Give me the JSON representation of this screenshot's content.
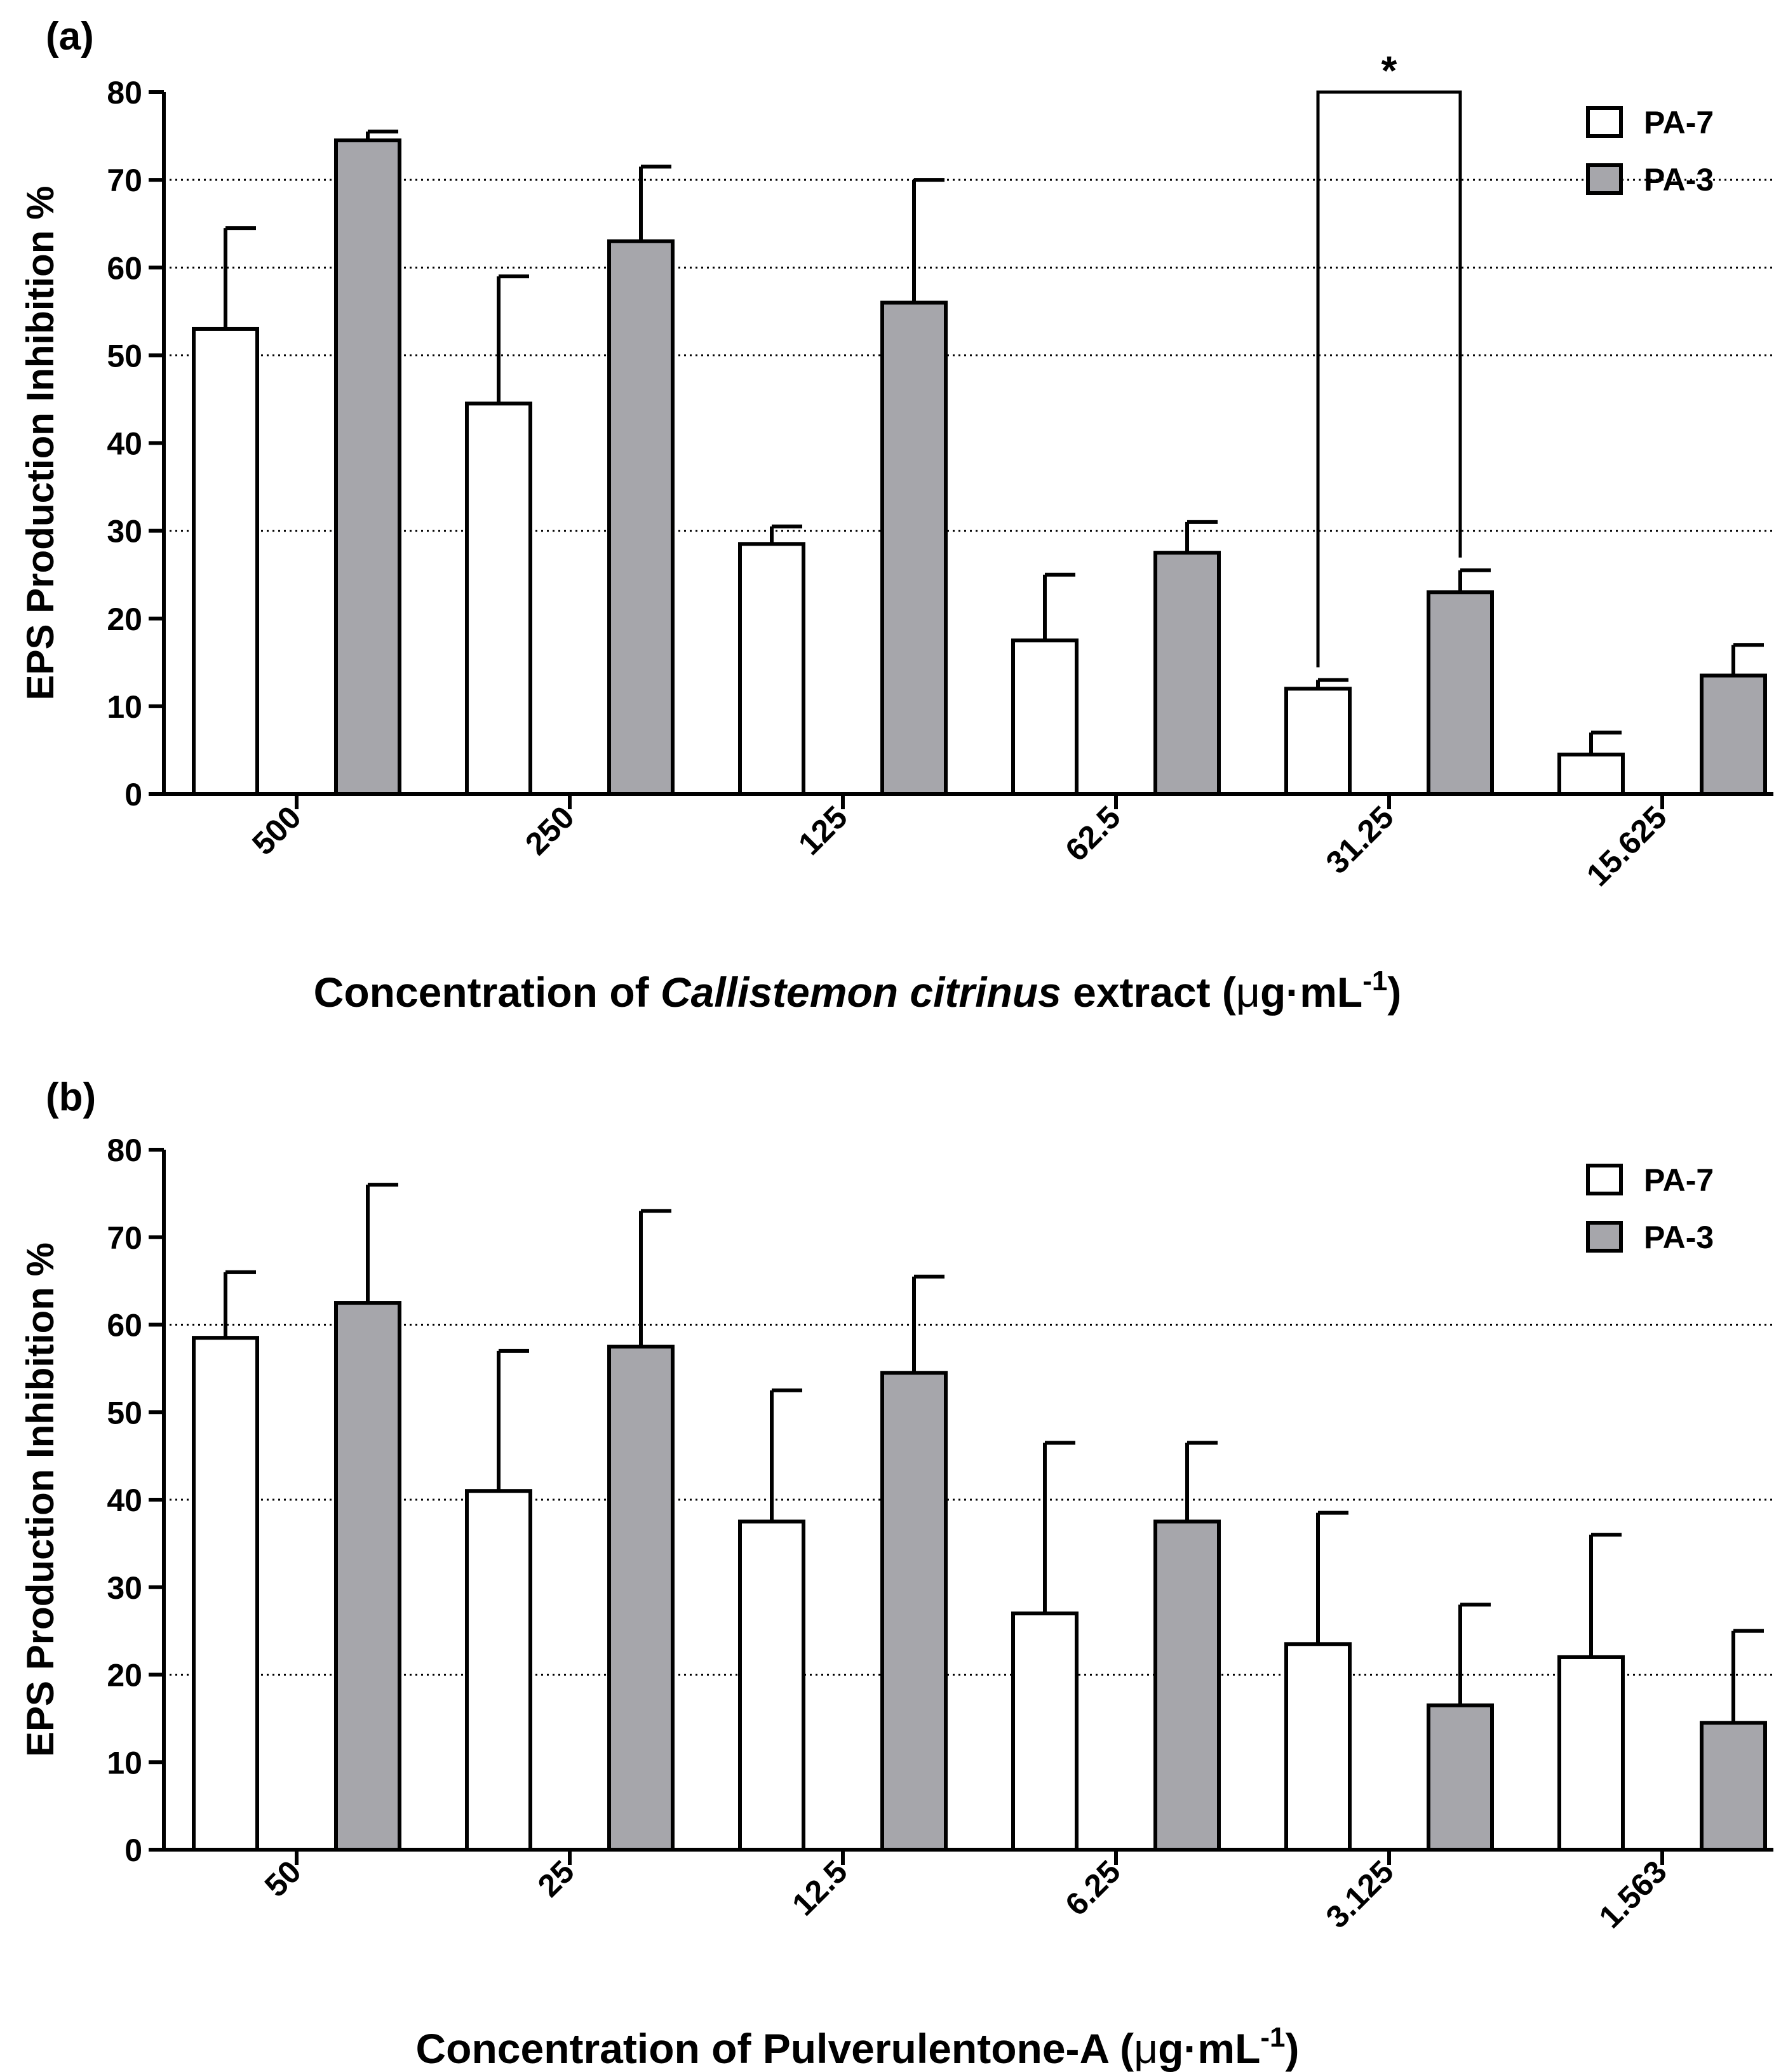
{
  "chart_data": [
    {
      "type": "bar",
      "panel_label": "(a)",
      "xlabel_prefix": "Concentration of ",
      "xlabel_italic": "Callistemon citrinus",
      "xlabel_middle": " extract  (",
      "xlabel_mu": "μ",
      "xlabel_unit": "g·mL",
      "xlabel_sup": "-1",
      "xlabel_close": ")",
      "ylabel": "EPS Production Inhibition %",
      "ylim": [
        0,
        80
      ],
      "yticks": [
        0,
        10,
        20,
        30,
        40,
        50,
        60,
        70,
        80
      ],
      "gridlines": [
        30,
        50,
        60,
        70
      ],
      "categories": [
        "500",
        "250",
        "125",
        "62.5",
        "31.25",
        "15.625"
      ],
      "series": [
        {
          "name": "PA-7",
          "color": "#ffffff",
          "values": [
            53,
            44.5,
            28.5,
            17.5,
            12,
            4.5
          ],
          "errors": [
            11.5,
            14.5,
            2,
            7.5,
            1,
            2.5
          ]
        },
        {
          "name": "PA-3",
          "color": "#a6a6ab",
          "values": [
            74.5,
            63,
            56,
            27.5,
            23,
            13.5
          ],
          "errors": [
            1,
            8.5,
            14,
            3.5,
            2.5,
            3.5
          ]
        }
      ],
      "significance": {
        "category_index": 4,
        "top": 80,
        "label": "*"
      },
      "legend_position": "top-right"
    },
    {
      "type": "bar",
      "panel_label": "(b)",
      "xlabel_prefix": "Concentration of Pulverulentone-A  (",
      "xlabel_italic": "",
      "xlabel_middle": "",
      "xlabel_mu": "μ",
      "xlabel_unit": "g·mL",
      "xlabel_sup": "-1",
      "xlabel_close": ")",
      "ylabel": "EPS Production Inhibition %",
      "ylim": [
        0,
        80
      ],
      "yticks": [
        0,
        10,
        20,
        30,
        40,
        50,
        60,
        70,
        80
      ],
      "gridlines": [
        20,
        40,
        60
      ],
      "categories": [
        "50",
        "25",
        "12.5",
        "6.25",
        "3.125",
        "1.563"
      ],
      "series": [
        {
          "name": "PA-7",
          "color": "#ffffff",
          "values": [
            58.5,
            41,
            37.5,
            27,
            23.5,
            22
          ],
          "errors": [
            7.5,
            16,
            15,
            19.5,
            15,
            14
          ]
        },
        {
          "name": "PA-3",
          "color": "#a6a6ab",
          "values": [
            62.5,
            57.5,
            54.5,
            37.5,
            16.5,
            14.5
          ],
          "errors": [
            13.5,
            15.5,
            11,
            9,
            11.5,
            10.5
          ]
        }
      ],
      "significance": null,
      "legend_position": "top-right"
    }
  ]
}
